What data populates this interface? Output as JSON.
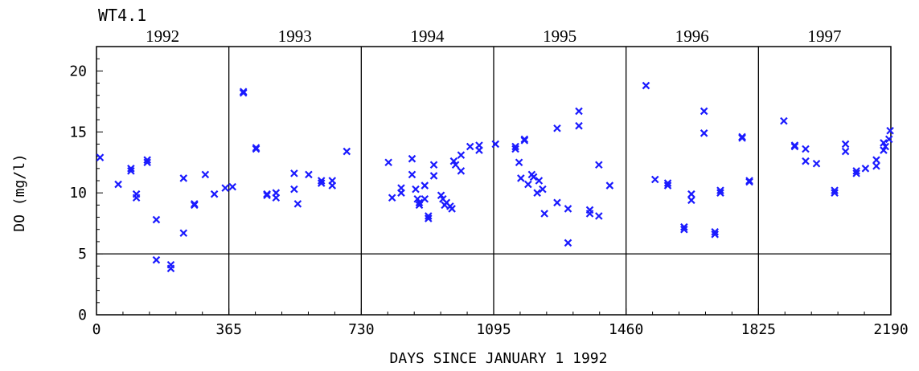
{
  "chart_data": {
    "type": "scatter",
    "title": "WT4.1",
    "xlabel": "DAYS SINCE JANUARY 1 1992",
    "ylabel": "DO (mg/l)",
    "xlim": [
      0,
      2190
    ],
    "ylim": [
      0,
      22
    ],
    "x_ticks": [
      0,
      365,
      730,
      1095,
      1460,
      1825,
      2190
    ],
    "x_tick_labels": [
      "0",
      "365",
      "730",
      "1095",
      "1460",
      "1825",
      "2190"
    ],
    "y_ticks": [
      0,
      5,
      10,
      15,
      20
    ],
    "y_tick_labels": [
      "0",
      "5",
      "10",
      "15",
      "20"
    ],
    "gridlines": {
      "x": [
        365,
        730,
        1095,
        1460,
        1825
      ],
      "y": [
        5
      ]
    },
    "year_labels": [
      {
        "label": "1992",
        "center": 182
      },
      {
        "label": "1993",
        "center": 547
      },
      {
        "label": "1994",
        "center": 912
      },
      {
        "label": "1995",
        "center": 1277
      },
      {
        "label": "1996",
        "center": 1642
      },
      {
        "label": "1997",
        "center": 2007
      }
    ],
    "marker_color": "#1a1aff",
    "series": [
      {
        "points": [
          [
            10,
            12.9
          ],
          [
            60,
            10.7
          ],
          [
            95,
            11.8
          ],
          [
            95,
            12.0
          ],
          [
            110,
            9.6
          ],
          [
            110,
            9.9
          ],
          [
            140,
            12.5
          ],
          [
            140,
            12.7
          ],
          [
            165,
            7.8
          ],
          [
            165,
            4.5
          ],
          [
            205,
            4.1
          ],
          [
            205,
            3.8
          ],
          [
            240,
            11.2
          ],
          [
            240,
            6.7
          ],
          [
            270,
            9.0
          ],
          [
            270,
            9.1
          ],
          [
            300,
            11.5
          ],
          [
            325,
            9.9
          ],
          [
            355,
            10.4
          ],
          [
            375,
            10.5
          ],
          [
            405,
            18.3
          ],
          [
            405,
            18.2
          ],
          [
            440,
            13.6
          ],
          [
            440,
            13.7
          ],
          [
            470,
            9.8
          ],
          [
            470,
            9.9
          ],
          [
            495,
            10.0
          ],
          [
            495,
            9.6
          ],
          [
            545,
            11.6
          ],
          [
            545,
            10.3
          ],
          [
            555,
            9.1
          ],
          [
            585,
            11.5
          ],
          [
            620,
            10.8
          ],
          [
            620,
            11.0
          ],
          [
            650,
            11.0
          ],
          [
            650,
            10.6
          ],
          [
            690,
            13.4
          ],
          [
            805,
            12.5
          ],
          [
            815,
            9.6
          ],
          [
            840,
            10.0
          ],
          [
            840,
            10.4
          ],
          [
            870,
            12.8
          ],
          [
            870,
            11.5
          ],
          [
            880,
            10.3
          ],
          [
            885,
            9.5
          ],
          [
            890,
            9.2
          ],
          [
            890,
            9.0
          ],
          [
            905,
            10.6
          ],
          [
            905,
            9.5
          ],
          [
            915,
            7.9
          ],
          [
            915,
            8.1
          ],
          [
            930,
            12.3
          ],
          [
            930,
            11.4
          ],
          [
            950,
            9.8
          ],
          [
            955,
            9.5
          ],
          [
            960,
            9.0
          ],
          [
            965,
            9.2
          ],
          [
            975,
            8.9
          ],
          [
            980,
            8.7
          ],
          [
            985,
            12.6
          ],
          [
            990,
            12.3
          ],
          [
            1005,
            13.1
          ],
          [
            1005,
            11.8
          ],
          [
            1030,
            13.8
          ],
          [
            1055,
            13.9
          ],
          [
            1055,
            13.5
          ],
          [
            1100,
            14.0
          ],
          [
            1155,
            13.6
          ],
          [
            1155,
            13.8
          ],
          [
            1165,
            12.5
          ],
          [
            1170,
            11.2
          ],
          [
            1180,
            14.3
          ],
          [
            1180,
            14.4
          ],
          [
            1190,
            10.7
          ],
          [
            1200,
            11.5
          ],
          [
            1205,
            11.3
          ],
          [
            1215,
            10.0
          ],
          [
            1220,
            11.0
          ],
          [
            1230,
            10.3
          ],
          [
            1235,
            8.3
          ],
          [
            1270,
            15.3
          ],
          [
            1270,
            9.2
          ],
          [
            1300,
            8.7
          ],
          [
            1300,
            5.9
          ],
          [
            1330,
            16.7
          ],
          [
            1330,
            15.5
          ],
          [
            1360,
            8.6
          ],
          [
            1360,
            8.3
          ],
          [
            1385,
            12.3
          ],
          [
            1385,
            8.1
          ],
          [
            1415,
            10.6
          ],
          [
            1515,
            18.8
          ],
          [
            1540,
            11.1
          ],
          [
            1575,
            10.8
          ],
          [
            1575,
            10.6
          ],
          [
            1620,
            7.2
          ],
          [
            1620,
            7.0
          ],
          [
            1640,
            9.9
          ],
          [
            1640,
            9.4
          ],
          [
            1675,
            16.7
          ],
          [
            1675,
            14.9
          ],
          [
            1705,
            6.6
          ],
          [
            1705,
            6.8
          ],
          [
            1720,
            10.0
          ],
          [
            1720,
            10.2
          ],
          [
            1780,
            14.6
          ],
          [
            1780,
            14.5
          ],
          [
            1800,
            11.0
          ],
          [
            1800,
            10.9
          ],
          [
            1895,
            15.9
          ],
          [
            1925,
            13.8
          ],
          [
            1925,
            13.9
          ],
          [
            1955,
            13.6
          ],
          [
            1955,
            12.6
          ],
          [
            1985,
            12.4
          ],
          [
            2035,
            10.0
          ],
          [
            2035,
            10.2
          ],
          [
            2065,
            14.0
          ],
          [
            2065,
            13.4
          ],
          [
            2095,
            11.8
          ],
          [
            2095,
            11.6
          ],
          [
            2120,
            12.0
          ],
          [
            2150,
            12.7
          ],
          [
            2150,
            12.2
          ],
          [
            2170,
            13.5
          ],
          [
            2170,
            14.1
          ],
          [
            2175,
            13.8
          ],
          [
            2185,
            14.4
          ],
          [
            2188,
            15.1
          ]
        ]
      }
    ]
  }
}
